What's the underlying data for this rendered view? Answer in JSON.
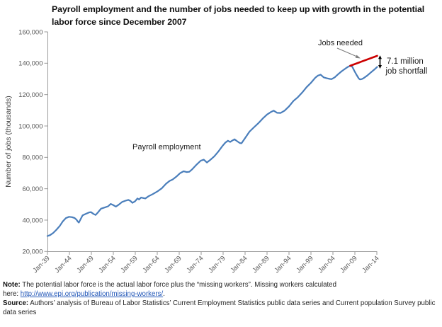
{
  "header": {
    "title_line1": "Payroll employment and the number of jobs needed to keep up with growth in",
    "title_line2": "the potential labor force since December 2007"
  },
  "chart_data": {
    "type": "line",
    "title": "Payroll employment and the number of jobs needed to keep up with growth in the potential labor force since December 2007",
    "xlabel": "",
    "ylabel": "Number of jobs (thousands)",
    "xlim": [
      1939,
      2014.2
    ],
    "ylim": [
      20000,
      160000
    ],
    "grid": false,
    "legend_position": "direct-labels",
    "y_ticks": [
      {
        "v": 20000,
        "label": "20,000"
      },
      {
        "v": 40000,
        "label": "40,000"
      },
      {
        "v": 60000,
        "label": "60,000"
      },
      {
        "v": 80000,
        "label": "80,000"
      },
      {
        "v": 100000,
        "label": "100,000"
      },
      {
        "v": 120000,
        "label": "120,000"
      },
      {
        "v": 140000,
        "label": "140,000"
      },
      {
        "v": 160000,
        "label": "160,000"
      }
    ],
    "x_ticks": [
      {
        "v": 1939,
        "label": "Jan-39"
      },
      {
        "v": 1944,
        "label": "Jan-44"
      },
      {
        "v": 1949,
        "label": "Jan-49"
      },
      {
        "v": 1954,
        "label": "Jan-54"
      },
      {
        "v": 1959,
        "label": "Jan-59"
      },
      {
        "v": 1964,
        "label": "Jan-64"
      },
      {
        "v": 1969,
        "label": "Jan-69"
      },
      {
        "v": 1974,
        "label": "Jan-74"
      },
      {
        "v": 1979,
        "label": "Jan-79"
      },
      {
        "v": 1984,
        "label": "Jan-84"
      },
      {
        "v": 1989,
        "label": "Jan-89"
      },
      {
        "v": 1994,
        "label": "Jan-94"
      },
      {
        "v": 1999,
        "label": "Jan-99"
      },
      {
        "v": 2004,
        "label": "Jan-04"
      },
      {
        "v": 2009,
        "label": "Jan-09"
      },
      {
        "v": 2014,
        "label": "Jan-14"
      }
    ],
    "series": [
      {
        "name": "Payroll employment",
        "color": "#4a7ebb",
        "width": 2.2,
        "points": [
          [
            1939.0,
            29900
          ],
          [
            1939.6,
            30400
          ],
          [
            1940.3,
            31800
          ],
          [
            1941.0,
            33700
          ],
          [
            1941.8,
            36300
          ],
          [
            1942.5,
            39200
          ],
          [
            1943.2,
            41300
          ],
          [
            1943.9,
            42100
          ],
          [
            1944.6,
            41900
          ],
          [
            1945.2,
            41300
          ],
          [
            1945.6,
            40300
          ],
          [
            1945.9,
            39100
          ],
          [
            1946.15,
            38400
          ],
          [
            1946.5,
            40300
          ],
          [
            1947.0,
            43000
          ],
          [
            1947.7,
            43900
          ],
          [
            1948.5,
            44900
          ],
          [
            1948.9,
            45100
          ],
          [
            1949.5,
            43900
          ],
          [
            1949.95,
            43300
          ],
          [
            1950.5,
            44900
          ],
          [
            1951.2,
            47300
          ],
          [
            1952.0,
            48000
          ],
          [
            1952.8,
            48800
          ],
          [
            1953.4,
            50300
          ],
          [
            1953.9,
            49700
          ],
          [
            1954.6,
            48600
          ],
          [
            1955.3,
            50000
          ],
          [
            1956.0,
            51600
          ],
          [
            1956.8,
            52400
          ],
          [
            1957.4,
            52900
          ],
          [
            1957.9,
            52200
          ],
          [
            1958.35,
            51000
          ],
          [
            1958.9,
            51900
          ],
          [
            1959.5,
            53800
          ],
          [
            1959.85,
            53100
          ],
          [
            1960.3,
            54400
          ],
          [
            1960.9,
            54000
          ],
          [
            1961.3,
            53800
          ],
          [
            1962.0,
            55200
          ],
          [
            1963.0,
            56600
          ],
          [
            1964.0,
            58200
          ],
          [
            1965.0,
            60200
          ],
          [
            1966.0,
            63200
          ],
          [
            1966.8,
            65000
          ],
          [
            1967.5,
            65900
          ],
          [
            1968.3,
            67600
          ],
          [
            1969.2,
            69900
          ],
          [
            1970.0,
            71100
          ],
          [
            1970.7,
            70600
          ],
          [
            1971.3,
            70800
          ],
          [
            1972.0,
            72500
          ],
          [
            1973.0,
            75500
          ],
          [
            1973.9,
            77900
          ],
          [
            1974.6,
            78500
          ],
          [
            1975.3,
            76700
          ],
          [
            1976.0,
            78200
          ],
          [
            1977.0,
            80700
          ],
          [
            1978.0,
            84000
          ],
          [
            1978.8,
            87100
          ],
          [
            1979.5,
            89400
          ],
          [
            1980.1,
            90600
          ],
          [
            1980.6,
            89800
          ],
          [
            1981.1,
            90700
          ],
          [
            1981.6,
            91500
          ],
          [
            1982.2,
            90300
          ],
          [
            1982.8,
            89100
          ],
          [
            1983.2,
            89000
          ],
          [
            1984.0,
            92300
          ],
          [
            1985.0,
            96400
          ],
          [
            1986.0,
            99100
          ],
          [
            1987.0,
            101700
          ],
          [
            1988.0,
            104700
          ],
          [
            1989.0,
            107300
          ],
          [
            1989.8,
            108800
          ],
          [
            1990.5,
            109800
          ],
          [
            1991.3,
            108400
          ],
          [
            1992.1,
            108300
          ],
          [
            1993.0,
            109800
          ],
          [
            1994.0,
            112500
          ],
          [
            1995.0,
            115900
          ],
          [
            1996.0,
            118300
          ],
          [
            1997.0,
            121300
          ],
          [
            1998.0,
            124700
          ],
          [
            1999.0,
            127500
          ],
          [
            2000.0,
            130800
          ],
          [
            2000.6,
            132100
          ],
          [
            2001.2,
            132700
          ],
          [
            2001.9,
            131000
          ],
          [
            2002.6,
            130400
          ],
          [
            2003.3,
            130000
          ],
          [
            2003.7,
            129850
          ],
          [
            2004.4,
            131000
          ],
          [
            2005.2,
            133000
          ],
          [
            2006.0,
            134900
          ],
          [
            2006.9,
            136700
          ],
          [
            2007.5,
            137800
          ],
          [
            2007.95,
            138400
          ],
          [
            2008.4,
            137800
          ],
          [
            2008.9,
            135000
          ],
          [
            2009.4,
            132500
          ],
          [
            2009.9,
            130200
          ],
          [
            2010.15,
            129700
          ],
          [
            2010.6,
            129900
          ],
          [
            2011.0,
            130500
          ],
          [
            2011.8,
            132100
          ],
          [
            2012.6,
            134000
          ],
          [
            2013.4,
            135900
          ],
          [
            2014.08,
            137600
          ]
        ]
      },
      {
        "name": "Jobs needed",
        "color": "#cc0000",
        "width": 2.6,
        "points": [
          [
            2007.95,
            138400
          ],
          [
            2014.08,
            144700
          ]
        ]
      }
    ],
    "annotations": {
      "payroll": {
        "text": "Payroll employment"
      },
      "jobs_needed": {
        "text": "Jobs needed"
      },
      "shortfall": {
        "line1": "7.1 million",
        "line2": "job shortfall"
      }
    }
  },
  "footer": {
    "note_label": "Note:",
    "note_line1": "The potential labor force is the actual labor force plus the “missing workers”.  Missing workers calculated",
    "note_line2_prefix": "here:",
    "note_link": "http://www.epi.org/publication/missing-workers/",
    "note_line2_suffix": ".",
    "source_label": "Source:",
    "source_text": "Authors’ analysis of Bureau of Labor Statistics’ Current Employment Statistics public data series and Current population Survey public data series"
  }
}
